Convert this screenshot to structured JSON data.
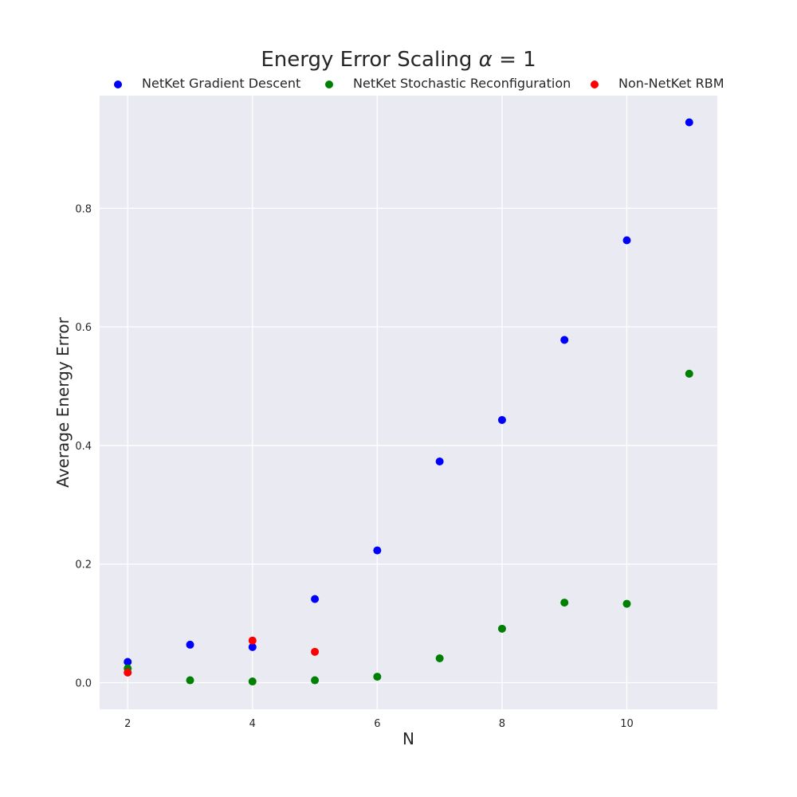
{
  "chart_data": {
    "type": "scatter",
    "title": "Energy Error Scaling α = 1",
    "title_prefix": "Energy Error Scaling ",
    "title_symbol": "α",
    "title_suffix": " = 1",
    "xlabel": "N",
    "ylabel": "Average Energy Error",
    "xlim": [
      1.55,
      11.45
    ],
    "ylim": [
      -0.045,
      0.99
    ],
    "xticks": [
      2,
      4,
      6,
      8,
      10
    ],
    "yticks": [
      0.0,
      0.2,
      0.4,
      0.6,
      0.8
    ],
    "xtick_labels": [
      "2",
      "4",
      "6",
      "8",
      "10"
    ],
    "ytick_labels": [
      "0.0",
      "0.2",
      "0.4",
      "0.6",
      "0.8"
    ],
    "grid": true,
    "legend_position": "top",
    "series": [
      {
        "name": "NetKet Gradient Descent",
        "color": "#0000ff",
        "x": [
          2,
          3,
          4,
          5,
          6,
          7,
          8,
          9,
          10,
          11
        ],
        "y": [
          0.035,
          0.064,
          0.06,
          0.141,
          0.223,
          0.373,
          0.443,
          0.578,
          0.746,
          0.945
        ]
      },
      {
        "name": "NetKet Stochastic Reconfiguration",
        "color": "#008000",
        "x": [
          2,
          3,
          4,
          5,
          6,
          7,
          8,
          9,
          10,
          11
        ],
        "y": [
          0.024,
          0.004,
          0.002,
          0.004,
          0.01,
          0.041,
          0.091,
          0.135,
          0.133,
          0.521
        ]
      },
      {
        "name": "Non-NetKet RBM",
        "color": "#ff0000",
        "x": [
          2,
          4,
          5
        ],
        "y": [
          0.017,
          0.071,
          0.052
        ]
      }
    ]
  }
}
